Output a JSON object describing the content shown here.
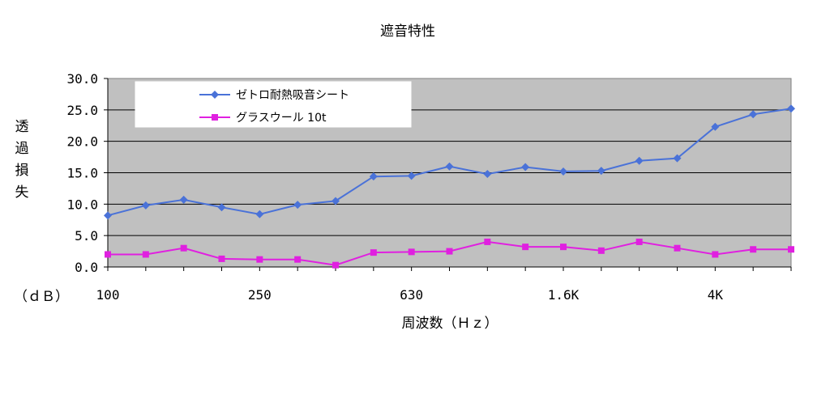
{
  "chart_data": {
    "type": "line",
    "title": "遮音特性",
    "xlabel": "周波数（Ｈｚ）",
    "ylabel": "透過損失",
    "unit_label": "（ｄＢ）",
    "ylim": [
      0,
      30
    ],
    "yticks": [
      "0.0",
      "5.0",
      "10.0",
      "15.0",
      "20.0",
      "25.0",
      "30.0"
    ],
    "x_index_range": [
      0,
      18
    ],
    "x_tick_labels": [
      {
        "index": 0,
        "label": "100"
      },
      {
        "index": 4,
        "label": "250"
      },
      {
        "index": 8,
        "label": "630"
      },
      {
        "index": 12,
        "label": "1.6K"
      },
      {
        "index": 16,
        "label": "4K"
      }
    ],
    "grid": true,
    "plot_background": "#c0c0c0",
    "legend_position": "top-left",
    "series": [
      {
        "name": "ゼトロ耐熱吸音シート",
        "color": "#4a72d8",
        "marker": "diamond",
        "values": [
          8.2,
          9.8,
          10.7,
          9.5,
          8.4,
          9.9,
          10.5,
          14.4,
          14.5,
          16.0,
          14.8,
          15.9,
          15.2,
          15.3,
          16.9,
          17.3,
          22.3,
          24.3,
          25.2
        ]
      },
      {
        "name": "グラスウール 10t",
        "color": "#e020e0",
        "marker": "square",
        "values": [
          2.0,
          2.0,
          3.0,
          1.3,
          1.2,
          1.2,
          0.3,
          2.3,
          2.4,
          2.5,
          4.0,
          3.2,
          3.2,
          2.6,
          4.0,
          3.0,
          2.0,
          2.8,
          2.8
        ]
      }
    ]
  }
}
